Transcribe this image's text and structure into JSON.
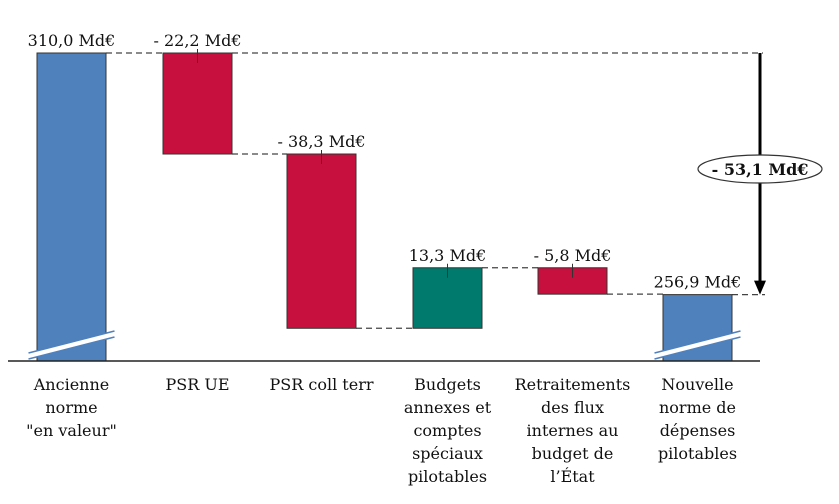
{
  "chart_data": {
    "type": "waterfall",
    "title": "",
    "xlabel": "",
    "ylabel": "",
    "unit": "Md€",
    "categories": [
      [
        "Ancienne",
        "norme",
        "\"en valeur\""
      ],
      [
        "PSR UE"
      ],
      [
        "PSR coll terr"
      ],
      [
        "Budgets",
        "annexes et",
        "comptes",
        "spéciaux",
        "pilotables"
      ],
      [
        "Retraitements",
        "des flux",
        "internes au",
        "budget de",
        "l’État"
      ],
      [
        "Nouvelle",
        "norme de",
        "dépenses",
        "pilotables"
      ]
    ],
    "bars": [
      {
        "kind": "total",
        "value": 310.0,
        "label": "310,0 Md€",
        "color": "#4f81bd"
      },
      {
        "kind": "delta",
        "value": -22.2,
        "label": "- 22,2 Md€",
        "color": "#c8103e"
      },
      {
        "kind": "delta",
        "value": -38.3,
        "label": "- 38,3 Md€",
        "color": "#c8103e"
      },
      {
        "kind": "delta",
        "value": 13.3,
        "label": "13,3 Md€",
        "color": "#007a6c"
      },
      {
        "kind": "delta",
        "value": -5.8,
        "label": "- 5,8 Md€",
        "color": "#c8103e"
      },
      {
        "kind": "total",
        "value": 256.9,
        "label": "256,9 Md€",
        "color": "#4f81bd"
      }
    ],
    "total_change": {
      "value": -53.1,
      "label": "- 53,1 Md€"
    },
    "axis_break": true,
    "grid": false,
    "legend": "none"
  }
}
